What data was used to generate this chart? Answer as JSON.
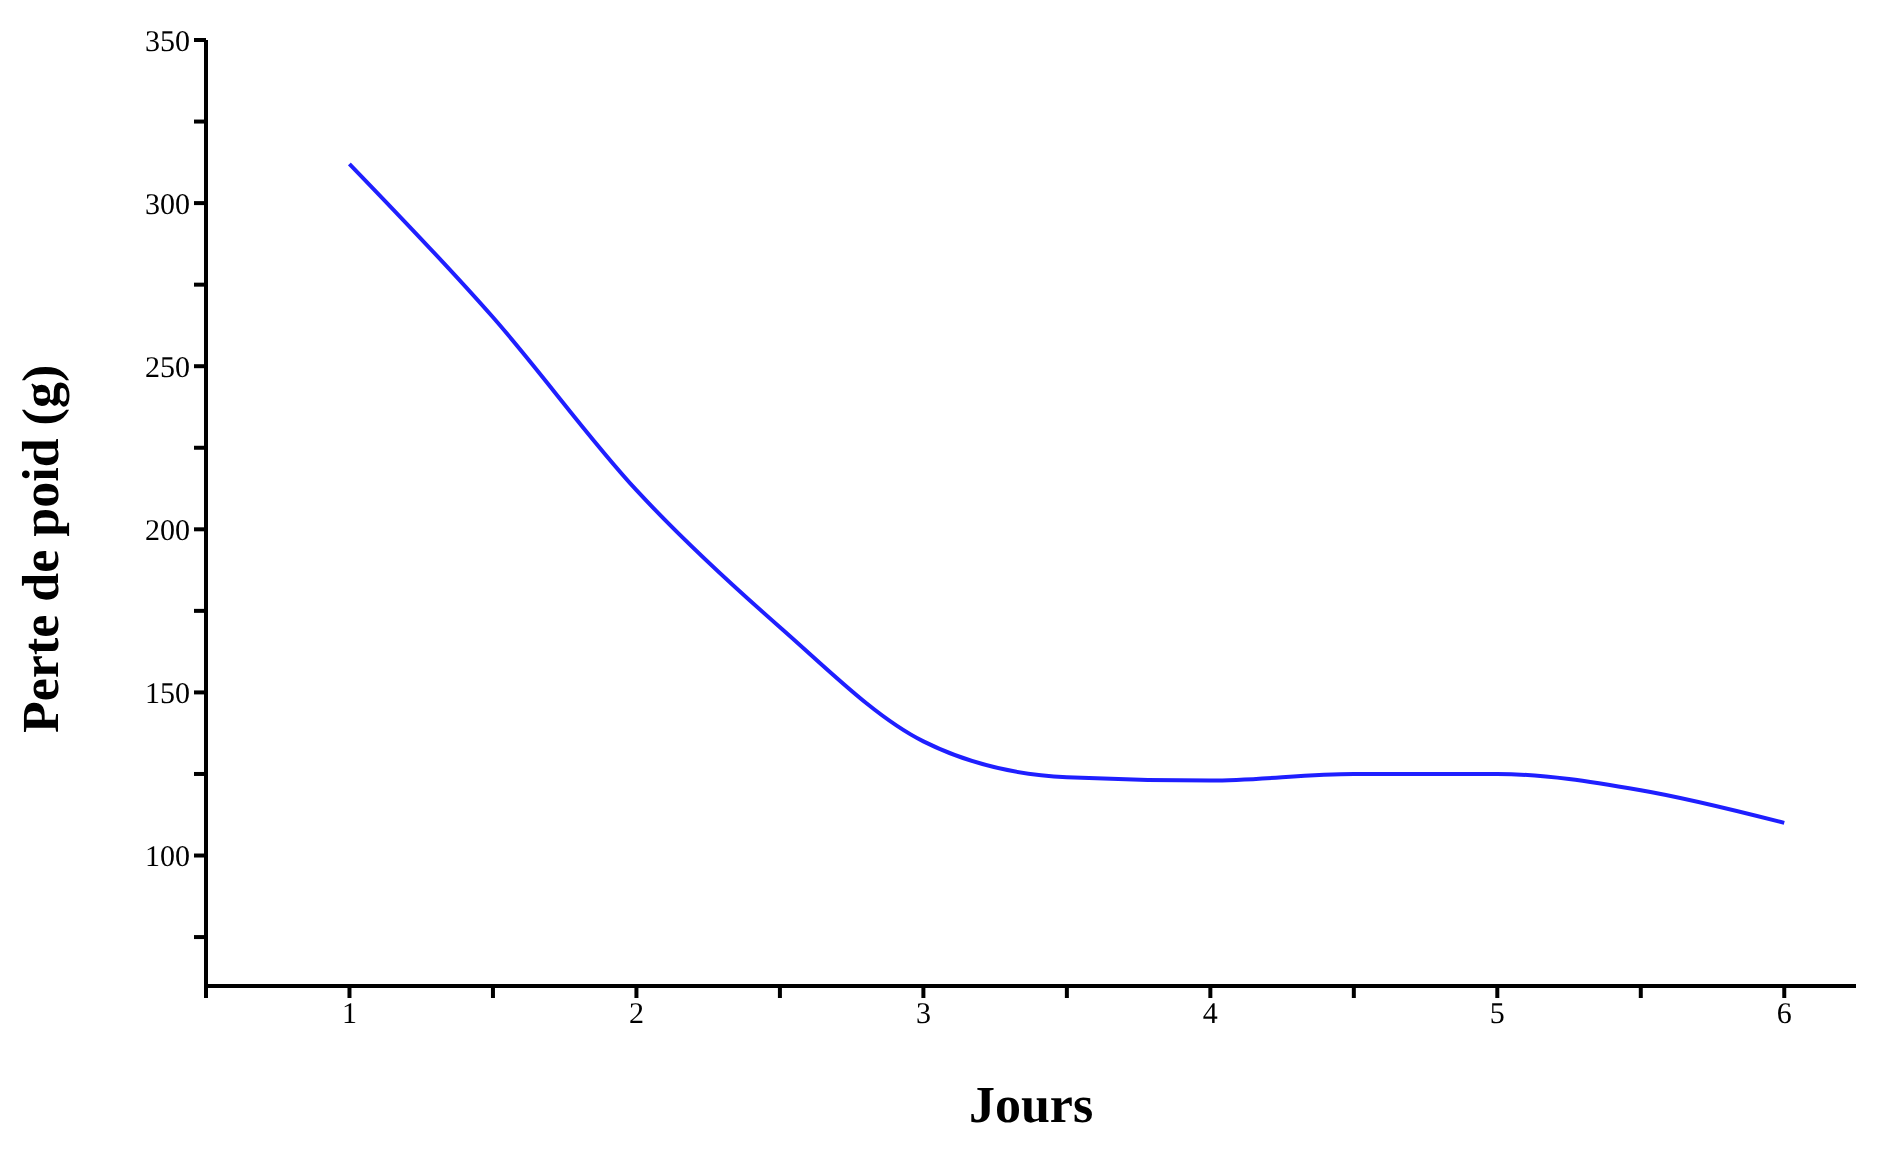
{
  "chart_data": {
    "type": "line",
    "xlabel": "Jours",
    "ylabel": "Perte de poid (g)",
    "x": [
      1,
      1.5,
      2,
      2.5,
      3,
      3.5,
      4,
      4.5,
      5,
      5.5,
      6
    ],
    "series": [
      {
        "color": "#1f1fff",
        "values": [
          312,
          265,
          212,
          170,
          135,
          124,
          123,
          125,
          125,
          120,
          110
        ]
      }
    ],
    "xlim": [
      0.5,
      6.25
    ],
    "xticks": [
      {
        "value": 0.5,
        "label": null
      },
      1,
      {
        "value": 1.5,
        "label": null
      },
      2,
      {
        "value": 2.5,
        "label": null
      },
      3,
      {
        "value": 3.5,
        "label": null
      },
      4,
      {
        "value": 4.5,
        "label": null
      },
      5,
      {
        "value": 5.5,
        "label": null
      },
      6
    ],
    "ylim": [
      60,
      350
    ],
    "yticks": [
      {
        "value": 75,
        "label": null
      },
      100,
      {
        "value": 125,
        "label": null
      },
      150,
      {
        "value": 175,
        "label": null
      },
      200,
      {
        "value": 225,
        "label": null
      },
      250,
      {
        "value": 275,
        "label": null
      },
      300,
      {
        "value": 325,
        "label": null
      },
      350
    ],
    "grid": false,
    "legend": false,
    "marker": "none",
    "line_style": "solid"
  }
}
